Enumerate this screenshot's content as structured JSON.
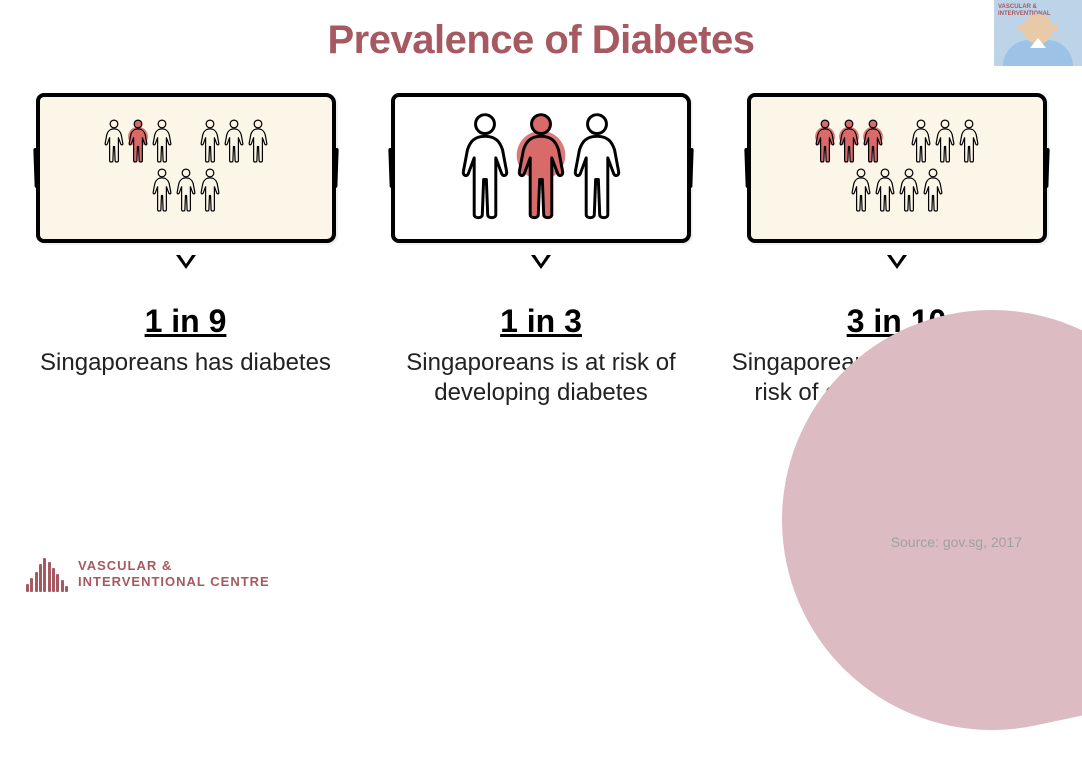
{
  "title": "Prevalence of Diabetes",
  "title_color": "#a65961",
  "panels": [
    {
      "id": "p1",
      "stat": "1 in 9",
      "desc": "Singaporeans has diabetes",
      "layout": "nine",
      "rows": [
        {
          "count": 6,
          "highlighted": [
            1
          ],
          "cluster_split": 3
        },
        {
          "count": 3,
          "highlighted": []
        }
      ],
      "person_scale": 0.55,
      "box_bg": "#fbf6e8"
    },
    {
      "id": "p2",
      "stat": "1 in 3",
      "desc": "Singaporeans is at risk of developing diabetes",
      "layout": "three",
      "rows": [
        {
          "count": 3,
          "highlighted": [
            1
          ]
        }
      ],
      "person_scale": 1.35,
      "box_bg": "#ffffff"
    },
    {
      "id": "p3",
      "stat": "3 in 10",
      "desc": "Singaporeans aged ≥ 60 are at risk of developing diabetes",
      "layout": "ten",
      "rows": [
        {
          "count": 6,
          "highlighted": [
            0,
            1,
            2
          ],
          "cluster_split": 3
        },
        {
          "count": 4,
          "highlighted": []
        }
      ],
      "person_scale": 0.55,
      "box_bg": "#fbf6e8"
    }
  ],
  "highlight_color": "#d96a6a",
  "outline_color": "#000000",
  "source_text": "Source: gov.sg, 2017",
  "brand": {
    "line1": "VASCULAR &",
    "line2": "INTERVENTIONAL CENTRE",
    "color": "#a65961"
  },
  "corner_color": "#dcbbc3",
  "thumb_label": "VASCULAR & INTERVENTIONAL"
}
